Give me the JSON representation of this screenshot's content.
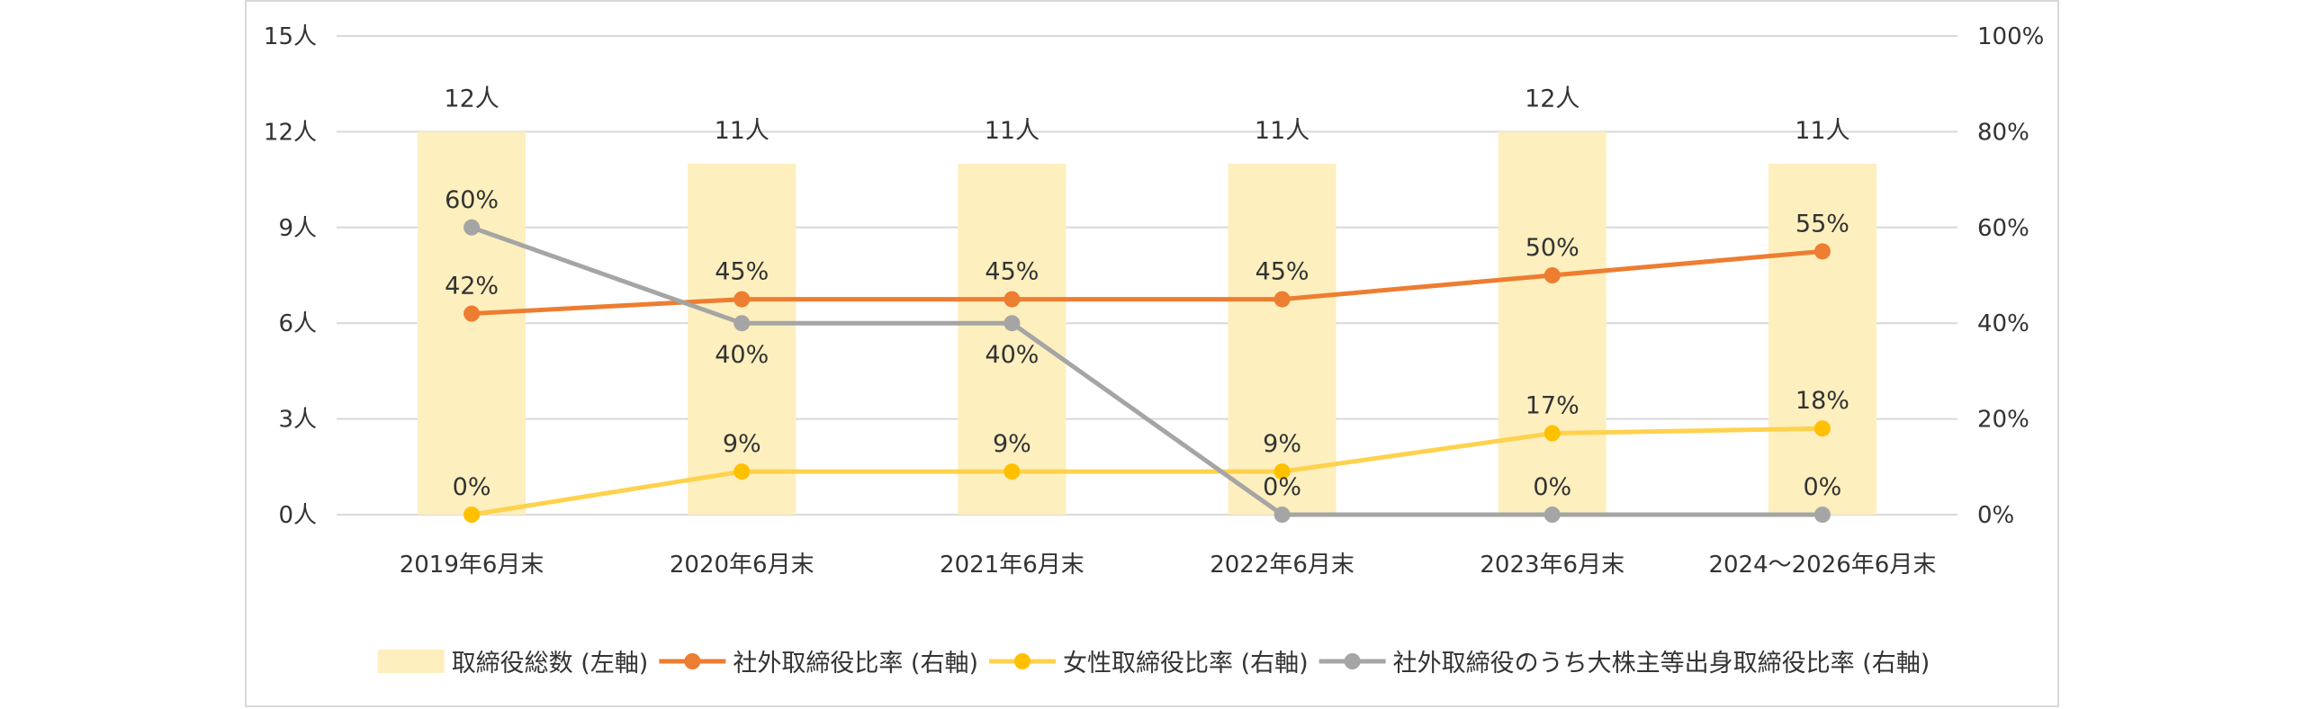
{
  "chart_data": {
    "type": "bar+line",
    "categories": [
      "2019年6月末",
      "2020年6月末",
      "2021年6月末",
      "2022年6月末",
      "2023年6月末",
      "2024～2026年6月末"
    ],
    "y_left": {
      "ylim": [
        0,
        15
      ],
      "ticks": [
        0,
        3,
        6,
        9,
        12,
        15
      ],
      "unit": "人"
    },
    "y_right": {
      "ylim": [
        0,
        100
      ],
      "ticks": [
        0,
        20,
        40,
        60,
        80,
        100
      ],
      "unit": "%"
    },
    "grid": true,
    "legend_position": "bottom",
    "bars": {
      "name": "取締役総数 (左軸)",
      "axis": "left",
      "color": "#fdefbe",
      "values": [
        12,
        11,
        11,
        11,
        12,
        11
      ],
      "labels": [
        "12人",
        "11人",
        "11人",
        "11人",
        "12人",
        "11人"
      ]
    },
    "series": [
      {
        "name": "社外取締役比率 (右軸)",
        "axis": "right",
        "color": "#ed7d31",
        "values": [
          42,
          45,
          45,
          45,
          50,
          55
        ],
        "labels": [
          "42%",
          "45%",
          "45%",
          "45%",
          "50%",
          "55%"
        ],
        "label_pos": [
          "above",
          "above",
          "above",
          "above",
          "above",
          "above"
        ]
      },
      {
        "name": "女性取締役比率 (右軸)",
        "axis": "right",
        "color": "#ffc000",
        "line_color": "#ffd24d",
        "values": [
          0,
          9,
          9,
          9,
          17,
          18
        ],
        "labels": [
          "0%",
          "9%",
          "9%",
          "9%",
          "17%",
          "18%"
        ],
        "label_pos": [
          "above",
          "above",
          "above",
          "above",
          "above",
          "above"
        ]
      },
      {
        "name": "社外取締役のうち大株主等出身取締役比率 (右軸)",
        "axis": "right",
        "color": "#a5a5a5",
        "values": [
          60,
          40,
          40,
          0,
          0,
          0
        ],
        "labels": [
          "60%",
          "40%",
          "40%",
          "0%",
          "0%",
          "0%"
        ],
        "label_pos": [
          "above",
          "below",
          "below",
          "above",
          "above",
          "above"
        ]
      }
    ]
  }
}
